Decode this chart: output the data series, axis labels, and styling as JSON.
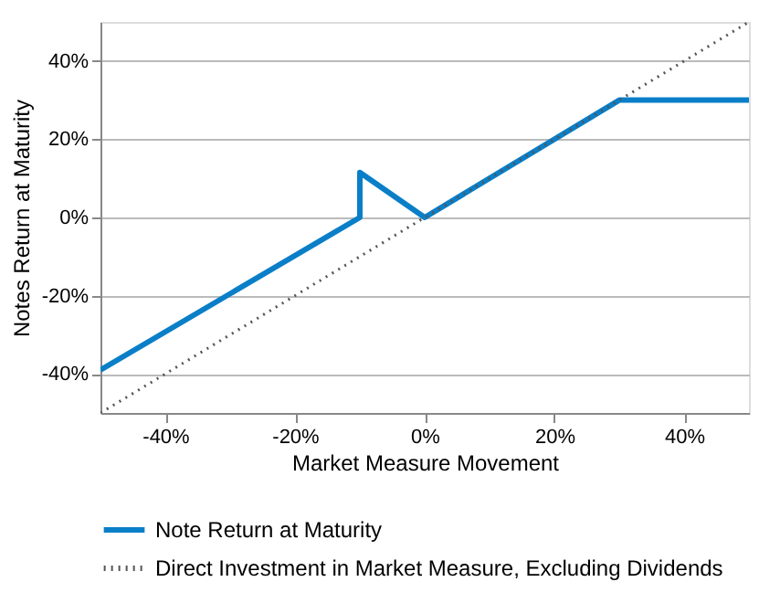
{
  "chart_data": {
    "type": "line",
    "xlabel": "Market Measure Movement",
    "ylabel": "Notes Return at Maturity",
    "series": [
      {
        "name": "Note Return at Maturity",
        "color": "#0a7fc8",
        "line_style": "solid",
        "x": [
          -50,
          -10,
          -10,
          0,
          30,
          50
        ],
        "values": [
          -39,
          0,
          11.5,
          0,
          30,
          30
        ]
      },
      {
        "name": "Direct Investment in Market Measure, Excluding Dividends",
        "color": "#555555",
        "line_style": "dotted",
        "x": [
          -50,
          50
        ],
        "values": [
          -50,
          50
        ]
      }
    ],
    "xlim": [
      -50,
      50
    ],
    "xticks": [
      {
        "value": -40,
        "label": "-40%"
      },
      {
        "value": -20,
        "label": "-20%"
      },
      {
        "value": 0,
        "label": "0%"
      },
      {
        "value": 20,
        "label": "20%"
      },
      {
        "value": 40,
        "label": "40%"
      }
    ],
    "ylim": [
      -50,
      50
    ],
    "yticks": [
      {
        "value": -40,
        "label": "-40%"
      },
      {
        "value": -20,
        "label": "-20%"
      },
      {
        "value": 0,
        "label": "0%"
      },
      {
        "value": 20,
        "label": "20%"
      },
      {
        "value": 40,
        "label": "40%"
      }
    ],
    "grid": "y",
    "legend": "bottom",
    "marker": "none"
  }
}
